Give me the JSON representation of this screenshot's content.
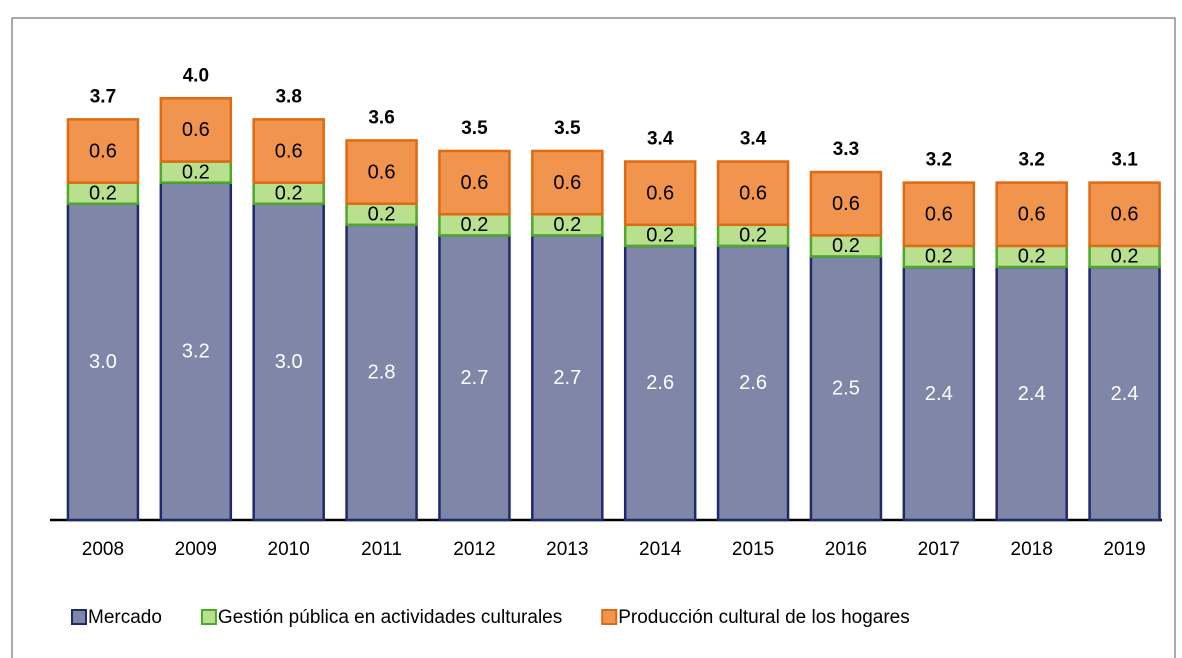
{
  "chart_data": {
    "type": "stacked_bar",
    "categories": [
      "2008",
      "2009",
      "2010",
      "2011",
      "2012",
      "2013",
      "2014",
      "2015",
      "2016",
      "2017",
      "2018",
      "2019"
    ],
    "ylim": [
      0,
      4.6
    ],
    "series": [
      {
        "name": "Mercado",
        "color": "#7f86a8",
        "stroke": "#1f2a6b",
        "label_color": "#ffffff",
        "values": [
          3,
          3.2,
          3,
          2.8,
          2.7,
          2.7,
          2.6,
          2.6,
          2.5,
          2.4,
          2.4,
          2.4
        ],
        "value_labels": [
          "3.0",
          "3.2",
          "3.0",
          "2.8",
          "2.7",
          "2.7",
          "2.6",
          "2.6",
          "2.5",
          "2.4",
          "2.4",
          "2.4"
        ]
      },
      {
        "name": "Gestión pública en actividades culturales",
        "color": "#b9e08f",
        "stroke": "#4fa82a",
        "label_color": "#000000",
        "values": [
          0.2,
          0.2,
          0.2,
          0.2,
          0.2,
          0.2,
          0.2,
          0.2,
          0.2,
          0.2,
          0.2,
          0.2
        ]
      },
      {
        "name": "Producción cultural de los hogares",
        "color": "#f0944e",
        "stroke": "#e06a10",
        "label_color": "#000000",
        "values": [
          0.6,
          0.6,
          0.6,
          0.6,
          0.6,
          0.6,
          0.6,
          0.6,
          0.6,
          0.6,
          0.6,
          0.6
        ]
      }
    ],
    "totals": {
      "values": [
        3.7,
        4,
        3.8,
        3.6,
        3.5,
        3.5,
        3.4,
        3.4,
        3.3,
        3.2,
        3.2,
        3.1
      ],
      "value_labels": [
        "3.7",
        "4.0",
        "3.8",
        "3.6",
        "3.5",
        "3.5",
        "3.4",
        "3.4",
        "3.3",
        "3.2",
        "3.2",
        "3.1"
      ]
    },
    "legend": "bottom"
  }
}
